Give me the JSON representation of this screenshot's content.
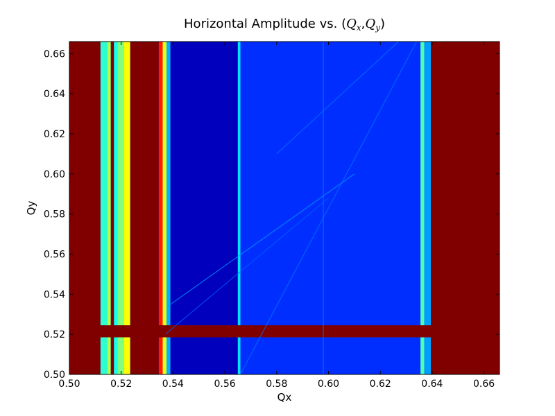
{
  "chart_data": {
    "type": "heatmap",
    "title": "Horizontal Amplitude vs. (",
    "title_math_1": "Q",
    "title_sub_1": "x",
    "title_sep": ",",
    "title_math_2": "Q",
    "title_sub_2": "y",
    "title_close": ")",
    "xlabel": "Qx",
    "ylabel": "Qy",
    "xlim": [
      0.5,
      0.666
    ],
    "ylim": [
      0.5,
      0.666
    ],
    "xticks": [
      "0.50",
      "0.52",
      "0.54",
      "0.56",
      "0.58",
      "0.60",
      "0.62",
      "0.64",
      "0.66"
    ],
    "yticks": [
      "0.50",
      "0.52",
      "0.54",
      "0.56",
      "0.58",
      "0.60",
      "0.62",
      "0.64",
      "0.66"
    ],
    "colormap": "jet",
    "grid": false,
    "background_value": 0.1,
    "regions": [
      {
        "name": "left-saturated",
        "x": [
          0.5,
          0.512
        ],
        "y": [
          0.5,
          0.666
        ],
        "value": 1.0
      },
      {
        "name": "band-a",
        "x": [
          0.512,
          0.5145
        ],
        "y": [
          0.5,
          0.666
        ],
        "value": 0.42
      },
      {
        "name": "band-b",
        "x": [
          0.5145,
          0.516
        ],
        "y": [
          0.5,
          0.666
        ],
        "value": 0.55
      },
      {
        "name": "band-c",
        "x": [
          0.516,
          0.5172
        ],
        "y": [
          0.5,
          0.666
        ],
        "value": 1.0
      },
      {
        "name": "band-d",
        "x": [
          0.5172,
          0.5185
        ],
        "y": [
          0.5,
          0.666
        ],
        "value": 0.4
      },
      {
        "name": "band-e",
        "x": [
          0.5185,
          0.521
        ],
        "y": [
          0.5,
          0.666
        ],
        "value": 0.5
      },
      {
        "name": "band-f",
        "x": [
          0.521,
          0.5235
        ],
        "y": [
          0.5,
          0.666
        ],
        "value": 0.62
      },
      {
        "name": "mid-saturated",
        "x": [
          0.5235,
          0.5345
        ],
        "y": [
          0.5,
          0.666
        ],
        "value": 1.0
      },
      {
        "name": "band-g",
        "x": [
          0.5345,
          0.536
        ],
        "y": [
          0.5,
          0.666
        ],
        "value": 0.85
      },
      {
        "name": "band-h",
        "x": [
          0.536,
          0.5375
        ],
        "y": [
          0.5,
          0.666
        ],
        "value": 0.6
      },
      {
        "name": "band-i",
        "x": [
          0.5375,
          0.539
        ],
        "y": [
          0.5,
          0.666
        ],
        "value": 0.3
      },
      {
        "name": "dark-zone",
        "x": [
          0.539,
          0.565
        ],
        "y": [
          0.5,
          0.666
        ],
        "value": 0.06
      },
      {
        "name": "bright-line",
        "x": [
          0.565,
          0.566
        ],
        "y": [
          0.5,
          0.666
        ],
        "value": 0.35
      },
      {
        "name": "blue-zone",
        "x": [
          0.566,
          0.6355
        ],
        "y": [
          0.5,
          0.666
        ],
        "value": 0.17
      },
      {
        "name": "edge-1",
        "x": [
          0.6355,
          0.637
        ],
        "y": [
          0.5,
          0.666
        ],
        "value": 0.45
      },
      {
        "name": "edge-2",
        "x": [
          0.637,
          0.6395
        ],
        "y": [
          0.5,
          0.666
        ],
        "value": 0.28
      },
      {
        "name": "right-saturated",
        "x": [
          0.6395,
          0.666
        ],
        "y": [
          0.5,
          0.666
        ],
        "value": 1.0
      },
      {
        "name": "horizontal-band",
        "x": [
          0.5,
          0.64
        ],
        "y": [
          0.5185,
          0.5245
        ],
        "value": 1.0
      }
    ],
    "lines": [
      {
        "name": "diag-1",
        "from": [
          0.538,
          0.534
        ],
        "to": [
          0.61,
          0.6
        ],
        "value": 0.28
      },
      {
        "name": "diag-2",
        "from": [
          0.566,
          0.5
        ],
        "to": [
          0.634,
          0.666
        ],
        "value": 0.24
      },
      {
        "name": "diag-3",
        "from": [
          0.537,
          0.52
        ],
        "to": [
          0.6,
          0.588
        ],
        "value": 0.22
      },
      {
        "name": "diag-4",
        "from": [
          0.58,
          0.61
        ],
        "to": [
          0.627,
          0.666
        ],
        "value": 0.24
      },
      {
        "name": "vline-598",
        "from": [
          0.598,
          0.5
        ],
        "to": [
          0.598,
          0.666
        ],
        "value": 0.25
      }
    ]
  }
}
